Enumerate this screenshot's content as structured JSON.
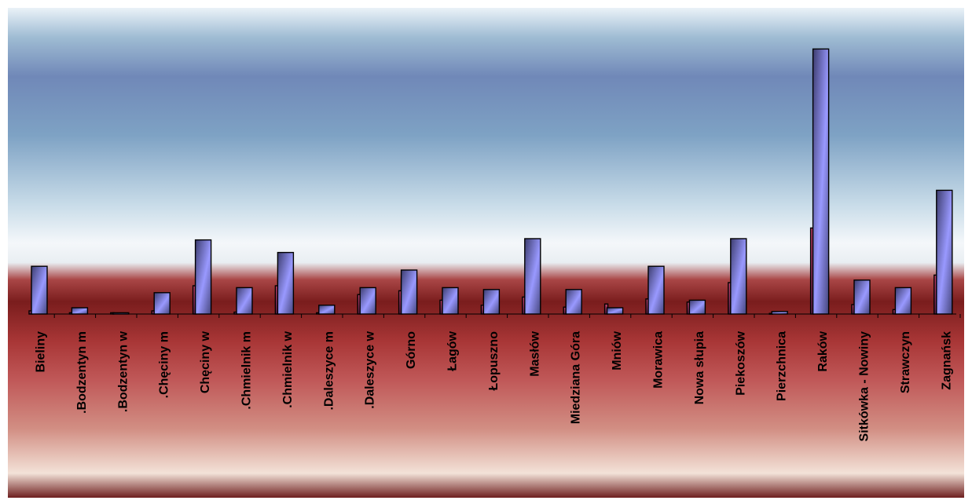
{
  "chart_data": {
    "type": "bar",
    "categories": [
      "Bieliny",
      ".Bodzentyn m",
      ".Bodzentyn w",
      ".Chęciny m",
      "Chęciny w",
      ".Chmielnik m",
      ".Chmielnik w",
      ".Daleszyce m",
      ".Daleszyce w",
      "Górno",
      "Łagów",
      "Łopuszno",
      "Masłów",
      "Miedziana Góra",
      "Mniów",
      "Morawica",
      "Nowa słupia",
      "Piekoszów",
      "Pierzchnica",
      "Raków",
      "Sitkówka - Nowiny",
      "Strawczyn",
      "Zagnańsk"
    ],
    "series": [
      {
        "values": [
          0.5,
          0.2,
          0.2,
          0.5,
          4.5,
          0.3,
          4.5,
          0.2,
          3.1,
          3.7,
          2.2,
          1.4,
          2.7,
          1.1,
          1.6,
          2.4,
          1.9,
          5.0,
          0.1,
          13.7,
          1.5,
          0.7,
          6.2
        ]
      },
      {
        "values": [
          7.6,
          1.0,
          0.2,
          3.4,
          11.8,
          4.2,
          9.8,
          1.4,
          4.2,
          7.0,
          4.2,
          3.9,
          12.0,
          3.9,
          1.0,
          7.6,
          2.2,
          12.0,
          0.4,
          42.2,
          5.4,
          4.2,
          19.7
        ]
      }
    ],
    "ylim": [
      0,
      48.75
    ],
    "grid": false,
    "legend": "none",
    "colors": {
      "series1_fill_top": "#c04068",
      "series1_fill_bottom": "#5a2048",
      "series2_fill_light": "#9999ff",
      "series2_fill_dark": "#3c3c6e",
      "bar_outline": "#000000",
      "plot_bg_top": "#eaf2f7",
      "plot_bg_mid": "#7896c0",
      "plot_bg_band": "#7a1e1e",
      "label_color": "#000000"
    }
  }
}
